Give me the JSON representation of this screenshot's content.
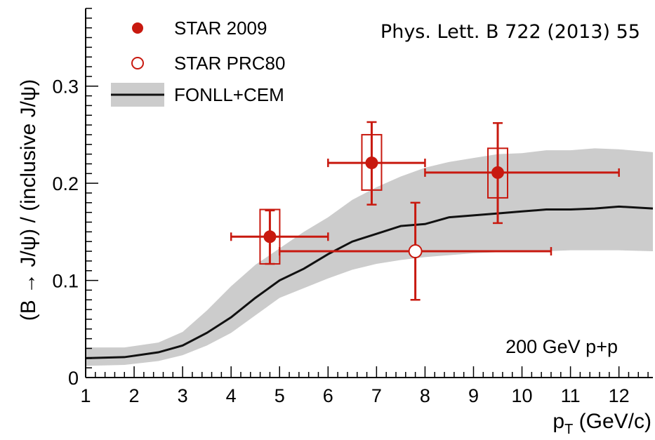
{
  "chart_data": {
    "type": "scatter",
    "xlabel": "p",
    "xlabel_sub": "T",
    "xlabel_unit": " (GeV/c)",
    "ylabel": "(B → J/ψ) / (inclusive J/ψ)",
    "xlim": [
      1,
      12.7
    ],
    "ylim": [
      0,
      0.38
    ],
    "x_ticks": [
      "1",
      "2",
      "3",
      "4",
      "5",
      "6",
      "7",
      "8",
      "9",
      "10",
      "11",
      "12"
    ],
    "y_ticks": [
      "0",
      "0.1",
      "0.2",
      "0.3"
    ],
    "grid": false,
    "legend_position": "top-left",
    "annotations": {
      "reference": "Phys. Lett. B 722 (2013) 55",
      "energy": "200 GeV p+p"
    },
    "series": [
      {
        "name": "STAR 2009",
        "marker": "filled-circle",
        "color": "#c8190f",
        "points": [
          {
            "x": 4.8,
            "y": 0.145,
            "xerr": [
              4.0,
              6.0
            ],
            "yerr": [
              0.117,
              0.172
            ],
            "sys": [
              0.117,
              0.173
            ]
          },
          {
            "x": 6.9,
            "y": 0.221,
            "xerr": [
              6.0,
              8.0
            ],
            "yerr": [
              0.178,
              0.263
            ],
            "sys": [
              0.193,
              0.25
            ]
          },
          {
            "x": 9.5,
            "y": 0.211,
            "xerr": [
              8.0,
              12.0
            ],
            "yerr": [
              0.159,
              0.262
            ],
            "sys": [
              0.185,
              0.236
            ]
          }
        ]
      },
      {
        "name": "STAR PRC80",
        "marker": "open-circle",
        "color": "#c8190f",
        "points": [
          {
            "x": 7.8,
            "y": 0.13,
            "xerr": [
              5.0,
              10.6
            ],
            "yerr": [
              0.08,
              0.18
            ]
          }
        ]
      },
      {
        "name": "FONLL+CEM",
        "type": "line-band",
        "color": "#111111",
        "band_color": "#cccccc",
        "x": [
          1.0,
          1.8,
          2.5,
          3.0,
          3.5,
          4.0,
          4.5,
          5.0,
          5.5,
          6.0,
          6.5,
          7.0,
          7.5,
          8.0,
          8.5,
          9.0,
          9.5,
          10.0,
          10.5,
          11.0,
          11.5,
          12.0,
          12.7
        ],
        "y": [
          0.02,
          0.021,
          0.026,
          0.033,
          0.046,
          0.062,
          0.082,
          0.1,
          0.112,
          0.127,
          0.14,
          0.148,
          0.156,
          0.158,
          0.165,
          0.167,
          0.169,
          0.171,
          0.173,
          0.173,
          0.174,
          0.176,
          0.174
        ],
        "lower": [
          0.012,
          0.013,
          0.017,
          0.023,
          0.033,
          0.046,
          0.064,
          0.082,
          0.092,
          0.102,
          0.111,
          0.117,
          0.121,
          0.124,
          0.126,
          0.128,
          0.129,
          0.13,
          0.13,
          0.131,
          0.131,
          0.131,
          0.13
        ],
        "upper": [
          0.031,
          0.031,
          0.036,
          0.047,
          0.069,
          0.094,
          0.116,
          0.133,
          0.15,
          0.165,
          0.183,
          0.196,
          0.207,
          0.216,
          0.222,
          0.226,
          0.23,
          0.231,
          0.234,
          0.234,
          0.236,
          0.235,
          0.232
        ]
      }
    ]
  }
}
